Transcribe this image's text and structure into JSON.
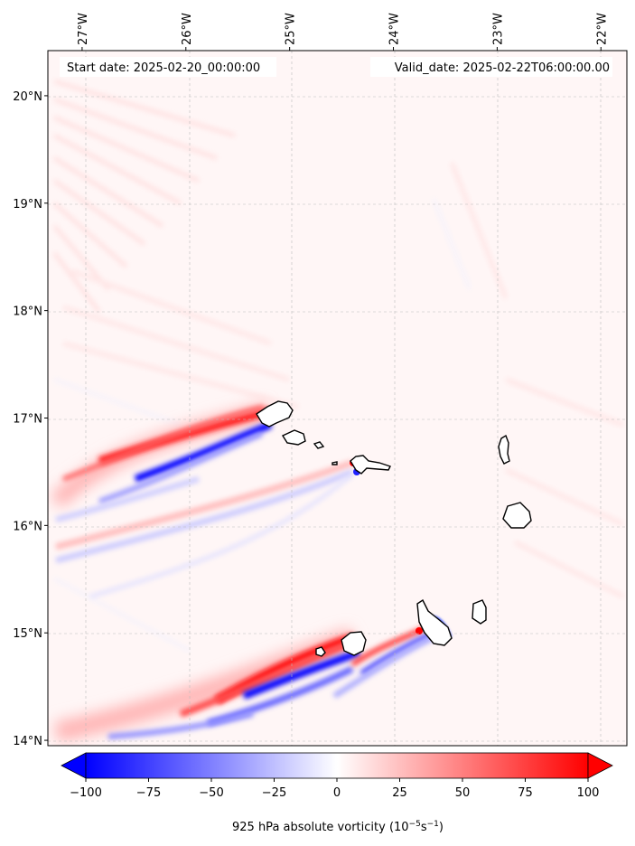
{
  "map": {
    "start_label": "Start date: 2025-02-20_00:00:00",
    "valid_label": "Valid_date: 2025-02-22T06:00:00.00",
    "lon_ticks": [
      {
        "value": -27,
        "label": "27°W"
      },
      {
        "value": -26,
        "label": "26°W"
      },
      {
        "value": -25,
        "label": "25°W"
      },
      {
        "value": -24,
        "label": "24°W"
      },
      {
        "value": -23,
        "label": "23°W"
      },
      {
        "value": -22,
        "label": "22°W"
      }
    ],
    "lat_ticks": [
      {
        "value": 20,
        "label": "20°N"
      },
      {
        "value": 19,
        "label": "19°N"
      },
      {
        "value": 18,
        "label": "18°N"
      },
      {
        "value": 17,
        "label": "17°N"
      },
      {
        "value": 16,
        "label": "16°N"
      },
      {
        "value": 15,
        "label": "15°N"
      },
      {
        "value": 14,
        "label": "14°N"
      }
    ],
    "lon_range": [
      -27.33,
      -21.75
    ],
    "lat_range": [
      13.95,
      20.42
    ],
    "gridlines": true,
    "colors": {
      "negative": "#0000ff",
      "neutral": "#ffffff",
      "positive": "#ff0000",
      "coast": "#000000"
    }
  },
  "colorbar": {
    "label_prefix": "925 hPa absolute vorticity (10",
    "label_exp1": "−5",
    "label_mid": "s",
    "label_exp2": "−1",
    "label_suffix": ")",
    "range": [
      -100,
      100
    ],
    "ticks": [
      {
        "value": -100,
        "label": "−100"
      },
      {
        "value": -75,
        "label": "−75"
      },
      {
        "value": -50,
        "label": "−50"
      },
      {
        "value": -25,
        "label": "−25"
      },
      {
        "value": 0,
        "label": "0"
      },
      {
        "value": 25,
        "label": "25"
      },
      {
        "value": 50,
        "label": "50"
      },
      {
        "value": 75,
        "label": "75"
      },
      {
        "value": 100,
        "label": "100"
      }
    ],
    "extend": "both"
  }
}
